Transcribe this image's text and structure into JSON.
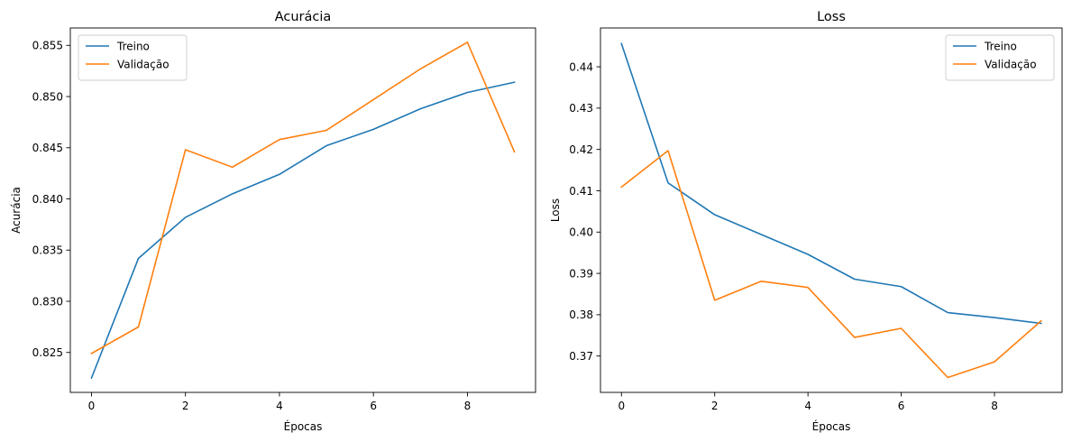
{
  "chart_data": [
    {
      "type": "line",
      "title": "Acurácia",
      "xlabel": "Épocas",
      "ylabel": "Acurácia",
      "x": [
        0,
        1,
        2,
        3,
        4,
        5,
        6,
        7,
        8,
        9
      ],
      "xlim": [
        -0.45,
        9.45
      ],
      "ylim": [
        0.8211,
        0.8567
      ],
      "xticks": [
        0,
        2,
        4,
        6,
        8
      ],
      "yticks": [
        0.825,
        0.83,
        0.835,
        0.84,
        0.845,
        0.85,
        0.855
      ],
      "ytick_labels": [
        "0.825",
        "0.830",
        "0.835",
        "0.840",
        "0.845",
        "0.850",
        "0.855"
      ],
      "legend_position": "upper left",
      "grid": false,
      "series": [
        {
          "name": "Treino",
          "color": "#1f77b4",
          "values": [
            0.8225,
            0.8342,
            0.8382,
            0.8405,
            0.8424,
            0.8452,
            0.8468,
            0.8488,
            0.8504,
            0.8514
          ]
        },
        {
          "name": "Validação",
          "color": "#ff7f0e",
          "values": [
            0.8249,
            0.8275,
            0.8448,
            0.8431,
            0.8458,
            0.8467,
            0.8497,
            0.8527,
            0.8553,
            0.8446
          ]
        }
      ]
    },
    {
      "type": "line",
      "title": "Loss",
      "xlabel": "Épocas",
      "ylabel": "Loss",
      "x": [
        0,
        1,
        2,
        3,
        4,
        5,
        6,
        7,
        8,
        9
      ],
      "xlim": [
        -0.45,
        9.45
      ],
      "ylim": [
        0.3612,
        0.4494
      ],
      "xticks": [
        0,
        2,
        4,
        6,
        8
      ],
      "yticks": [
        0.37,
        0.38,
        0.39,
        0.4,
        0.41,
        0.42,
        0.43,
        0.44
      ],
      "ytick_labels": [
        "0.37",
        "0.38",
        "0.39",
        "0.40",
        "0.41",
        "0.42",
        "0.43",
        "0.44"
      ],
      "legend_position": "upper right",
      "grid": false,
      "series": [
        {
          "name": "Treino",
          "color": "#1f77b4",
          "values": [
            0.4456,
            0.4119,
            0.4042,
            0.3994,
            0.3946,
            0.3886,
            0.3868,
            0.3805,
            0.3793,
            0.3779
          ]
        },
        {
          "name": "Validação",
          "color": "#ff7f0e",
          "values": [
            0.4109,
            0.4197,
            0.3835,
            0.3881,
            0.3866,
            0.3745,
            0.3767,
            0.3648,
            0.3686,
            0.3785
          ]
        }
      ]
    }
  ]
}
